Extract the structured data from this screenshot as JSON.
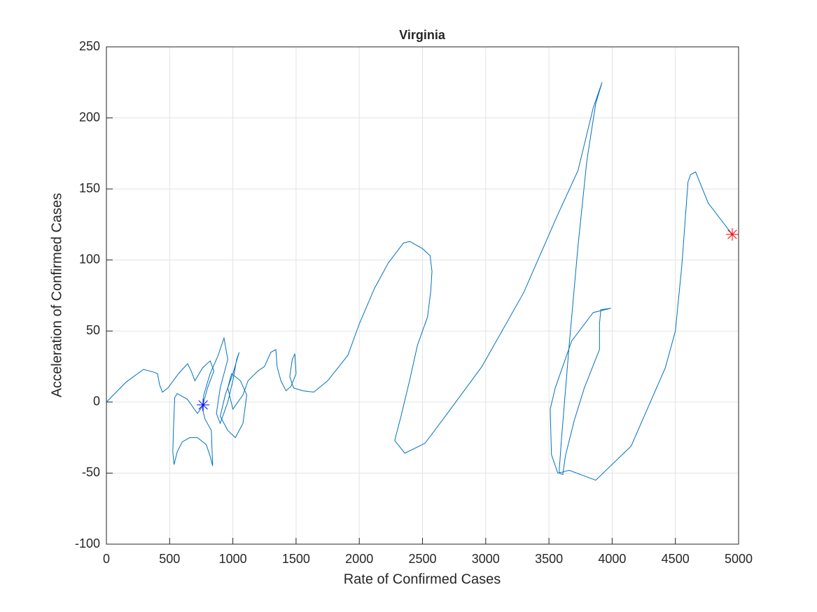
{
  "chart_data": {
    "type": "line",
    "title": "Virginia",
    "xlabel": "Rate of Confirmed Cases",
    "ylabel": "Acceleration of Confirmed Cases",
    "xlim": [
      0,
      5000
    ],
    "ylim": [
      -100,
      250
    ],
    "xticks": [
      0,
      500,
      1000,
      1500,
      2000,
      2500,
      3000,
      3500,
      4000,
      4500,
      5000
    ],
    "yticks": [
      -100,
      -50,
      0,
      50,
      100,
      150,
      200,
      250
    ],
    "grid": true,
    "x": [
      0,
      155,
      293,
      377,
      404,
      421,
      443,
      487,
      570,
      642,
      670,
      700,
      760,
      820,
      850,
      800,
      760,
      720,
      640,
      560,
      540,
      530,
      525,
      535,
      560,
      600,
      660,
      720,
      790,
      820,
      840,
      830,
      780,
      760,
      770,
      820,
      880,
      930,
      960,
      900,
      870,
      900,
      960,
      1000,
      1030,
      1050,
      1000,
      940,
      900,
      960,
      1020,
      1080,
      1110,
      1060,
      990,
      960,
      1000,
      1080,
      1120,
      1200,
      1250,
      1300,
      1340,
      1350,
      1380,
      1420,
      1460,
      1500,
      1490,
      1470,
      1450,
      1480,
      1550,
      1640,
      1750,
      1910,
      2000,
      2120,
      2230,
      2350,
      2400,
      2500,
      2560,
      2575,
      2565,
      2540,
      2460,
      2400,
      2330,
      2280,
      2360,
      2520,
      2680,
      2970,
      3300,
      3560,
      3730,
      3850,
      3920,
      3870,
      3800,
      3730,
      3660,
      3600,
      3580,
      3610,
      3630,
      3700,
      3780,
      3900,
      3900,
      3910,
      3990,
      3850,
      3680,
      3550,
      3510,
      3520,
      3570,
      3660,
      3870,
      4150,
      4420,
      4500,
      4550,
      4600,
      4620,
      4660,
      4760,
      4950
    ],
    "series": [
      {
        "color": "#0072bd",
        "values": [
          0,
          14,
          23,
          21,
          20,
          12,
          7,
          10,
          20,
          27,
          22,
          15,
          24,
          29,
          22,
          10,
          -3,
          -8,
          2,
          6,
          3,
          -20,
          -35,
          -44,
          -35,
          -28,
          -25,
          -25,
          -30,
          -38,
          -45,
          -20,
          -12,
          -5,
          5,
          20,
          32,
          45,
          30,
          10,
          -8,
          -15,
          0,
          15,
          30,
          35,
          20,
          5,
          -10,
          -20,
          -25,
          -15,
          5,
          15,
          20,
          10,
          -5,
          5,
          15,
          22,
          25,
          35,
          37,
          25,
          15,
          8,
          11,
          20,
          34,
          30,
          18,
          10,
          8,
          7,
          15,
          33,
          55,
          80,
          98,
          112,
          113,
          108,
          103,
          92,
          78,
          60,
          40,
          16,
          -10,
          -27,
          -36,
          -29,
          -10,
          25,
          77,
          130,
          163,
          207,
          225,
          210,
          170,
          110,
          40,
          -25,
          -50,
          -51,
          -38,
          -13,
          10,
          37,
          55,
          65,
          66,
          63,
          43,
          10,
          -5,
          -37,
          -50,
          -48,
          -55,
          -31,
          24,
          50,
          95,
          155,
          160,
          162,
          140,
          118
        ]
      }
    ],
    "markers": [
      {
        "x": 765,
        "y": -2,
        "color": "#0000ff"
      },
      {
        "x": 4950,
        "y": 118,
        "color": "#ff0000"
      }
    ]
  }
}
